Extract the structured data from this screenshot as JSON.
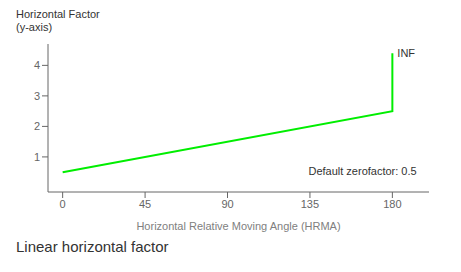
{
  "chart_data": {
    "type": "line",
    "title": "Linear horizontal factor",
    "x_label": "Horizontal Relative Moving Angle (HRMA)",
    "y_label": "Horizontal Factor\n(y-axis)",
    "x": [
      0,
      180,
      180
    ],
    "series": [
      {
        "color": "#00ee00",
        "values": [
          0.5,
          2.5,
          4.4
        ]
      }
    ],
    "xlim": [
      -8,
      200
    ],
    "xticks": [
      0,
      45,
      90,
      135,
      180
    ],
    "ylim": [
      -0.15,
      4.7
    ],
    "yticks": [
      1,
      2,
      3,
      4
    ],
    "grid": false,
    "annotations": [
      {
        "text": "INF",
        "x": 180,
        "y": 4.4,
        "position": "right"
      },
      {
        "text": "Default zerofactor: 0.5",
        "x": 196,
        "y": 0.52,
        "position": "left"
      }
    ]
  }
}
